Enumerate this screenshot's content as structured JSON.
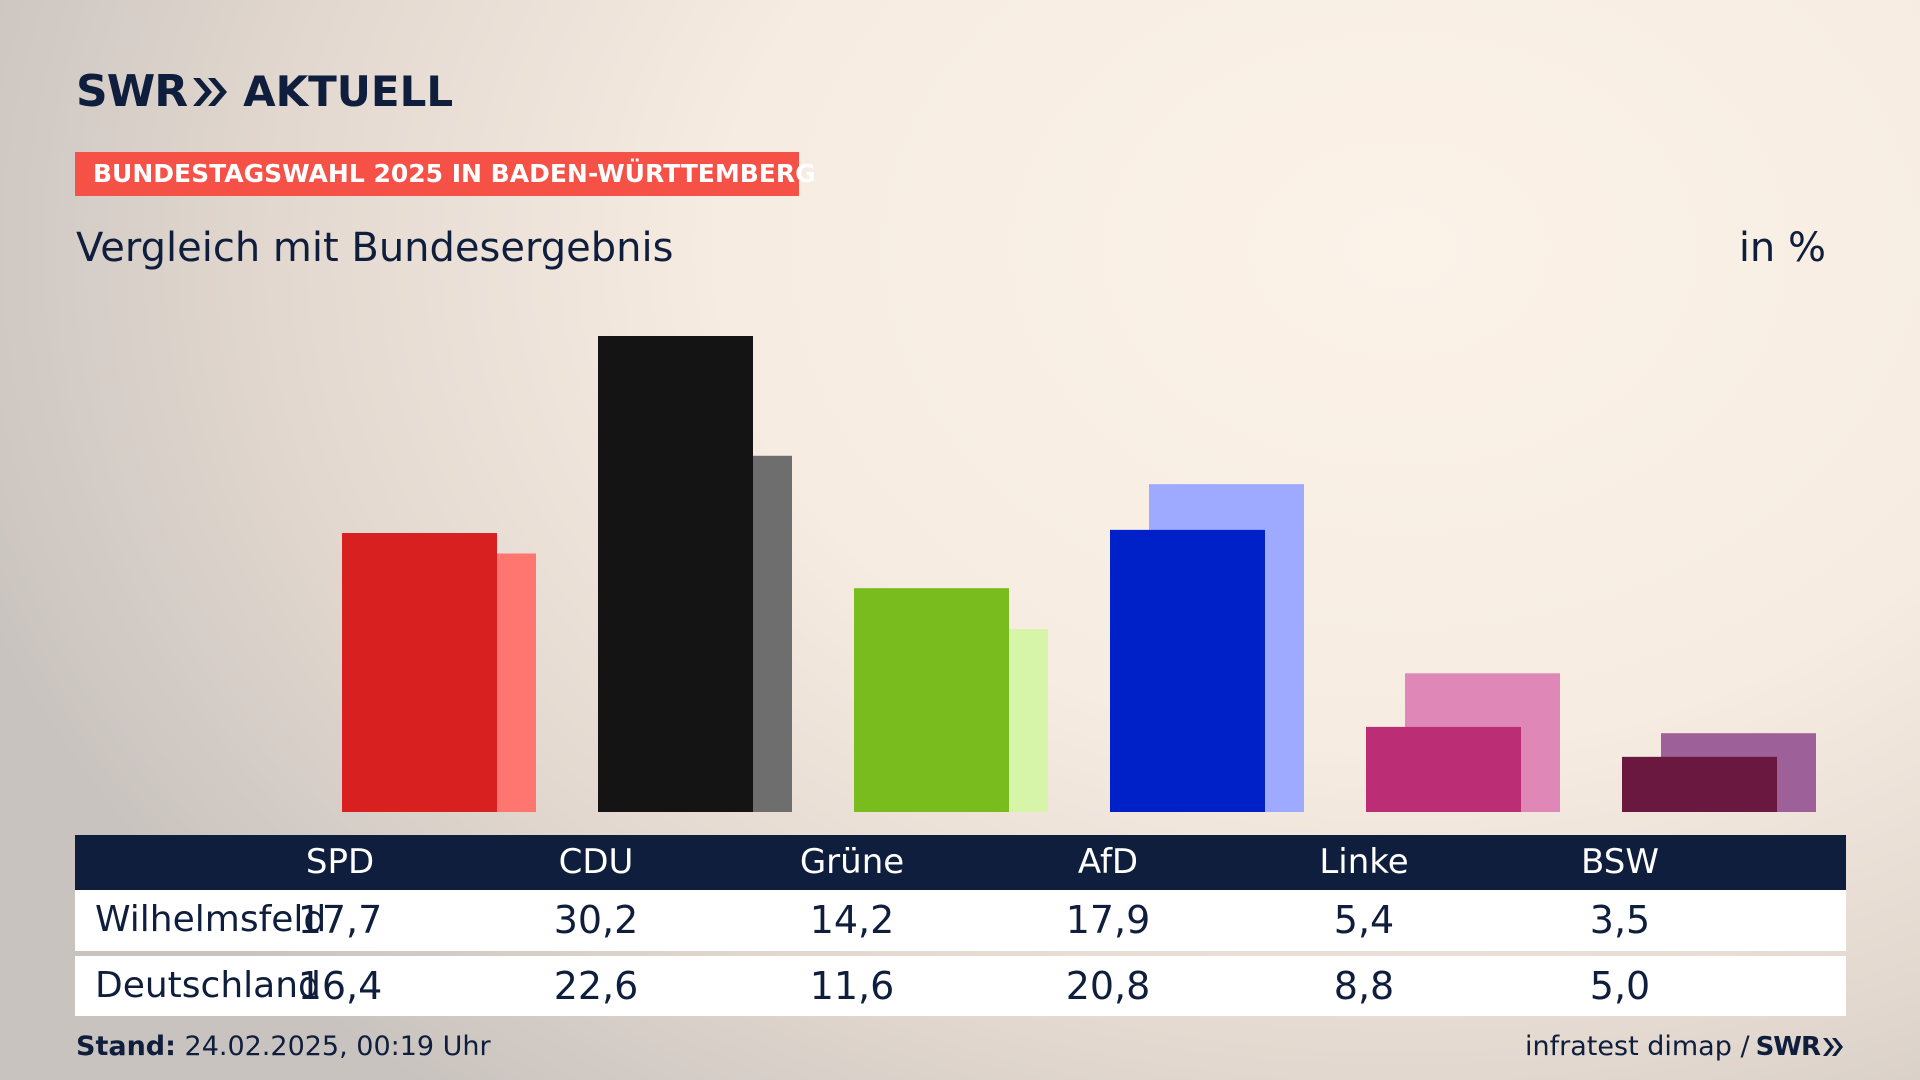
{
  "logo": {
    "brand": "SWR",
    "name": "AKTUELL"
  },
  "badge": "BUNDESTAGSWAHL 2025 IN BADEN-WÜRTTEMBERG",
  "subtitle": "Vergleich mit Bundesergebnis",
  "unit": "in %",
  "colors": {
    "SPD": [
      "#d7201f",
      "#ff756f"
    ],
    "CDU": [
      "#141414",
      "#6e6e6e"
    ],
    "Grüne": [
      "#78bd1d",
      "#d7f5a8"
    ],
    "AfD": [
      "#0021c8",
      "#9daaff"
    ],
    "Linke": [
      "#bb2e75",
      "#df88b7"
    ],
    "BSW": [
      "#6a1840",
      "#9d6098"
    ]
  },
  "chart_data": {
    "type": "bar",
    "categories": [
      "SPD",
      "CDU",
      "Grüne",
      "AfD",
      "Linke",
      "BSW"
    ],
    "series": [
      {
        "name": "Wilhelmsfeld",
        "values": [
          17.7,
          30.2,
          14.2,
          17.9,
          5.4,
          3.5
        ]
      },
      {
        "name": "Deutschland",
        "values": [
          16.4,
          22.6,
          11.6,
          20.8,
          8.8,
          5.0
        ]
      }
    ],
    "ylim": [
      0,
      30.2
    ]
  },
  "table": {
    "headers": [
      "SPD",
      "CDU",
      "Grüne",
      "AfD",
      "Linke",
      "BSW"
    ],
    "rows": [
      {
        "label": "Wilhelmsfeld",
        "values": [
          "17,7",
          "30,2",
          "14,2",
          "17,9",
          "5,4",
          "3,5"
        ]
      },
      {
        "label": "Deutschland",
        "values": [
          "16,4",
          "22,6",
          "11,6",
          "20,8",
          "8,8",
          "5,0"
        ]
      }
    ]
  },
  "footer": {
    "stand_label": "Stand:",
    "stand_value": "24.02.2025, 00:19 Uhr",
    "source": "infratest dimap /",
    "brand": "SWR"
  }
}
